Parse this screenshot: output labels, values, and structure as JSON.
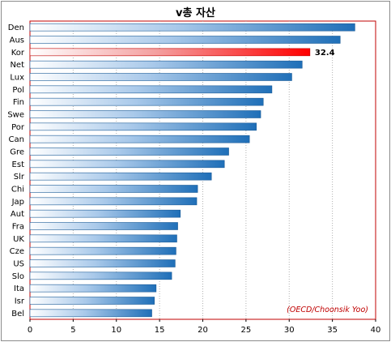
{
  "chart_data": {
    "type": "bar",
    "orientation": "horizontal",
    "title": "v총 자산",
    "categories": [
      "Den",
      "Aus",
      "Kor",
      "Net",
      "Lux",
      "Pol",
      "Fin",
      "Swe",
      "Por",
      "Can",
      "Gre",
      "Est",
      "Slr",
      "Chi",
      "Jap",
      "Aut",
      "Fra",
      "UK",
      "Cze",
      "US",
      "Slo",
      "Ita",
      "Isr",
      "Bel"
    ],
    "values": [
      37.6,
      35.9,
      32.4,
      31.5,
      30.3,
      28.0,
      27.0,
      26.7,
      26.2,
      25.4,
      23.0,
      22.5,
      21.0,
      19.4,
      19.3,
      17.4,
      17.1,
      17.0,
      16.9,
      16.8,
      16.4,
      14.6,
      14.4,
      14.1
    ],
    "highlight": {
      "category": "Kor",
      "label": "32.4",
      "color": "#ff0000"
    },
    "xlim": [
      0,
      40
    ],
    "xticks": [
      "0",
      "5",
      "10",
      "15",
      "20",
      "25",
      "30",
      "35",
      "40"
    ],
    "grid": "vertical-dotted",
    "bar_color": "#1f6fb8",
    "source": "(OECD/Choonsik Yoo)",
    "legend": "none"
  }
}
